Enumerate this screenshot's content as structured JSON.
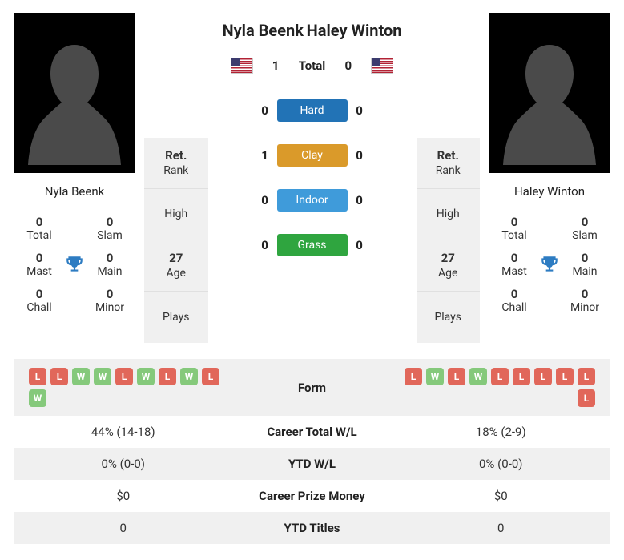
{
  "colors": {
    "total_label": "Total",
    "hard": "#2273b6",
    "clay": "#da9a2a",
    "indoor": "#3f9bda",
    "grass": "#2fa53f",
    "win": "#85c97b",
    "loss": "#e1675a",
    "trophy": "#2d7cc2",
    "alt_row": "#f0f0f0"
  },
  "player1": {
    "name": "Nyla Beenk",
    "flag": "us",
    "titles": {
      "total": {
        "v": "0",
        "k": "Total"
      },
      "slam": {
        "v": "0",
        "k": "Slam"
      },
      "mast": {
        "v": "0",
        "k": "Mast"
      },
      "main": {
        "v": "0",
        "k": "Main"
      },
      "chall": {
        "v": "0",
        "k": "Chall"
      },
      "minor": {
        "v": "0",
        "k": "Minor"
      }
    },
    "stats": {
      "rank": {
        "v": "Ret.",
        "k": "Rank"
      },
      "high": {
        "v": "",
        "k": "High"
      },
      "age": {
        "v": "27",
        "k": "Age"
      },
      "plays": {
        "v": "",
        "k": "Plays"
      }
    },
    "form": [
      "L",
      "L",
      "W",
      "W",
      "L",
      "W",
      "L",
      "W",
      "L",
      "W"
    ]
  },
  "player2": {
    "name": "Haley Winton",
    "flag": "us",
    "titles": {
      "total": {
        "v": "0",
        "k": "Total"
      },
      "slam": {
        "v": "0",
        "k": "Slam"
      },
      "mast": {
        "v": "0",
        "k": "Mast"
      },
      "main": {
        "v": "0",
        "k": "Main"
      },
      "chall": {
        "v": "0",
        "k": "Chall"
      },
      "minor": {
        "v": "0",
        "k": "Minor"
      }
    },
    "stats": {
      "rank": {
        "v": "Ret.",
        "k": "Rank"
      },
      "high": {
        "v": "",
        "k": "High"
      },
      "age": {
        "v": "27",
        "k": "Age"
      },
      "plays": {
        "v": "",
        "k": "Plays"
      }
    },
    "form": [
      "L",
      "W",
      "L",
      "W",
      "L",
      "L",
      "L",
      "L",
      "L",
      "L"
    ]
  },
  "h2h": {
    "total": {
      "label": "Total",
      "p1": "1",
      "p2": "0"
    },
    "hard": {
      "label": "Hard",
      "p1": "0",
      "p2": "0",
      "color": "#2273b6"
    },
    "clay": {
      "label": "Clay",
      "p1": "1",
      "p2": "0",
      "color": "#da9a2a"
    },
    "indoor": {
      "label": "Indoor",
      "p1": "0",
      "p2": "0",
      "color": "#3f9bda"
    },
    "grass": {
      "label": "Grass",
      "p1": "0",
      "p2": "0",
      "color": "#2fa53f"
    }
  },
  "compare": {
    "form_label": "Form",
    "career_wl": {
      "label": "Career Total W/L",
      "p1": "44% (14-18)",
      "p2": "18% (2-9)"
    },
    "ytd_wl": {
      "label": "YTD W/L",
      "p1": "0% (0-0)",
      "p2": "0% (0-0)"
    },
    "prize": {
      "label": "Career Prize Money",
      "p1": "$0",
      "p2": "$0"
    },
    "ytd_titles": {
      "label": "YTD Titles",
      "p1": "0",
      "p2": "0"
    }
  }
}
